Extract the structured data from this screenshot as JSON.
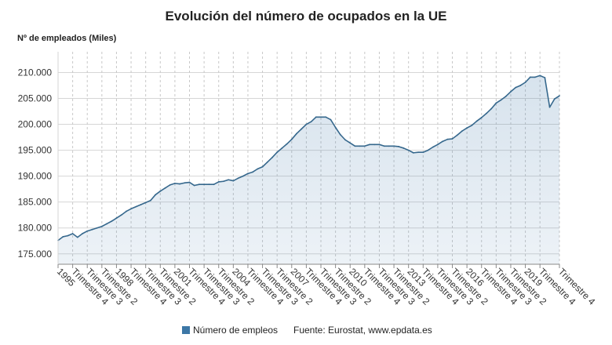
{
  "chart_data": {
    "type": "area",
    "title": "Evolución del número de ocupados en la UE",
    "ylabel": "Nº de empleados (Miles)",
    "xlabel": "",
    "ylim": [
      173000,
      214000
    ],
    "grid": true,
    "legend_position": "bottom",
    "yticks": [
      {
        "value": 175000,
        "label": "175.000"
      },
      {
        "value": 180000,
        "label": "180.000"
      },
      {
        "value": 185000,
        "label": "185.000"
      },
      {
        "value": 190000,
        "label": "190.000"
      },
      {
        "value": 195000,
        "label": "195.000"
      },
      {
        "value": 200000,
        "label": "200.000"
      },
      {
        "value": 205000,
        "label": "205.000"
      },
      {
        "value": 210000,
        "label": "210.000"
      }
    ],
    "xticks": [
      {
        "period": [
          1995,
          1
        ],
        "label": "1995"
      },
      {
        "period": [
          1995,
          4
        ],
        "label": "Trimestre 4"
      },
      {
        "period": [
          1996,
          3
        ],
        "label": "Trimestre 3"
      },
      {
        "period": [
          1997,
          2
        ],
        "label": "Trimestre 2"
      },
      {
        "period": [
          1998,
          1
        ],
        "label": "1998"
      },
      {
        "period": [
          1998,
          4
        ],
        "label": "Trimestre 4"
      },
      {
        "period": [
          1999,
          3
        ],
        "label": "Trimestre 3"
      },
      {
        "period": [
          2000,
          2
        ],
        "label": "Trimestre 2"
      },
      {
        "period": [
          2001,
          1
        ],
        "label": "2001"
      },
      {
        "period": [
          2001,
          4
        ],
        "label": "Trimestre 4"
      },
      {
        "period": [
          2002,
          3
        ],
        "label": "Trimestre 3"
      },
      {
        "period": [
          2003,
          2
        ],
        "label": "Trimestre 2"
      },
      {
        "period": [
          2004,
          1
        ],
        "label": "2004"
      },
      {
        "period": [
          2004,
          4
        ],
        "label": "Trimestre 4"
      },
      {
        "period": [
          2005,
          3
        ],
        "label": "Trimestre 3"
      },
      {
        "period": [
          2006,
          2
        ],
        "label": "Trimestre 2"
      },
      {
        "period": [
          2007,
          1
        ],
        "label": "2007"
      },
      {
        "period": [
          2007,
          4
        ],
        "label": "Trimestre 4"
      },
      {
        "period": [
          2008,
          3
        ],
        "label": "Trimestre 3"
      },
      {
        "period": [
          2009,
          2
        ],
        "label": "Trimestre 2"
      },
      {
        "period": [
          2010,
          1
        ],
        "label": "2010"
      },
      {
        "period": [
          2010,
          4
        ],
        "label": "Trimestre 4"
      },
      {
        "period": [
          2011,
          3
        ],
        "label": "Trimestre 3"
      },
      {
        "period": [
          2012,
          2
        ],
        "label": "Trimestre 2"
      },
      {
        "period": [
          2013,
          1
        ],
        "label": "2013"
      },
      {
        "period": [
          2013,
          4
        ],
        "label": "Trimestre 4"
      },
      {
        "period": [
          2014,
          3
        ],
        "label": "Trimestre 3"
      },
      {
        "period": [
          2015,
          2
        ],
        "label": "Trimestre 2"
      },
      {
        "period": [
          2016,
          1
        ],
        "label": "2016"
      },
      {
        "period": [
          2016,
          4
        ],
        "label": "Trimestre 4"
      },
      {
        "period": [
          2017,
          3
        ],
        "label": "Trimestre 3"
      },
      {
        "period": [
          2018,
          2
        ],
        "label": "Trimestre 2"
      },
      {
        "period": [
          2019,
          1
        ],
        "label": "2019"
      },
      {
        "period": [
          2019,
          4
        ],
        "label": "Trimestre 4"
      },
      {
        "period": [
          2020,
          4
        ],
        "label": "Trimestre 4"
      }
    ],
    "x": [
      [
        1995,
        1
      ],
      [
        1995,
        2
      ],
      [
        1995,
        3
      ],
      [
        1995,
        4
      ],
      [
        1996,
        1
      ],
      [
        1996,
        2
      ],
      [
        1996,
        3
      ],
      [
        1996,
        4
      ],
      [
        1997,
        1
      ],
      [
        1997,
        2
      ],
      [
        1997,
        3
      ],
      [
        1997,
        4
      ],
      [
        1998,
        1
      ],
      [
        1998,
        2
      ],
      [
        1998,
        3
      ],
      [
        1998,
        4
      ],
      [
        1999,
        1
      ],
      [
        1999,
        2
      ],
      [
        1999,
        3
      ],
      [
        1999,
        4
      ],
      [
        2000,
        1
      ],
      [
        2000,
        2
      ],
      [
        2000,
        3
      ],
      [
        2000,
        4
      ],
      [
        2001,
        1
      ],
      [
        2001,
        2
      ],
      [
        2001,
        3
      ],
      [
        2001,
        4
      ],
      [
        2002,
        1
      ],
      [
        2002,
        2
      ],
      [
        2002,
        3
      ],
      [
        2002,
        4
      ],
      [
        2003,
        1
      ],
      [
        2003,
        2
      ],
      [
        2003,
        3
      ],
      [
        2003,
        4
      ],
      [
        2004,
        1
      ],
      [
        2004,
        2
      ],
      [
        2004,
        3
      ],
      [
        2004,
        4
      ],
      [
        2005,
        1
      ],
      [
        2005,
        2
      ],
      [
        2005,
        3
      ],
      [
        2005,
        4
      ],
      [
        2006,
        1
      ],
      [
        2006,
        2
      ],
      [
        2006,
        3
      ],
      [
        2006,
        4
      ],
      [
        2007,
        1
      ],
      [
        2007,
        2
      ],
      [
        2007,
        3
      ],
      [
        2007,
        4
      ],
      [
        2008,
        1
      ],
      [
        2008,
        2
      ],
      [
        2008,
        3
      ],
      [
        2008,
        4
      ],
      [
        2009,
        1
      ],
      [
        2009,
        2
      ],
      [
        2009,
        3
      ],
      [
        2009,
        4
      ],
      [
        2010,
        1
      ],
      [
        2010,
        2
      ],
      [
        2010,
        3
      ],
      [
        2010,
        4
      ],
      [
        2011,
        1
      ],
      [
        2011,
        2
      ],
      [
        2011,
        3
      ],
      [
        2011,
        4
      ],
      [
        2012,
        1
      ],
      [
        2012,
        2
      ],
      [
        2012,
        3
      ],
      [
        2012,
        4
      ],
      [
        2013,
        1
      ],
      [
        2013,
        2
      ],
      [
        2013,
        3
      ],
      [
        2013,
        4
      ],
      [
        2014,
        1
      ],
      [
        2014,
        2
      ],
      [
        2014,
        3
      ],
      [
        2014,
        4
      ],
      [
        2015,
        1
      ],
      [
        2015,
        2
      ],
      [
        2015,
        3
      ],
      [
        2015,
        4
      ],
      [
        2016,
        1
      ],
      [
        2016,
        2
      ],
      [
        2016,
        3
      ],
      [
        2016,
        4
      ],
      [
        2017,
        1
      ],
      [
        2017,
        2
      ],
      [
        2017,
        3
      ],
      [
        2017,
        4
      ],
      [
        2018,
        1
      ],
      [
        2018,
        2
      ],
      [
        2018,
        3
      ],
      [
        2018,
        4
      ],
      [
        2019,
        1
      ],
      [
        2019,
        2
      ],
      [
        2019,
        3
      ],
      [
        2019,
        4
      ],
      [
        2020,
        1
      ],
      [
        2020,
        2
      ],
      [
        2020,
        3
      ],
      [
        2020,
        4
      ]
    ],
    "series": [
      {
        "name": "Número de empleos",
        "values": [
          177600,
          178300,
          178500,
          178900,
          178200,
          178900,
          179400,
          179700,
          180000,
          180300,
          180800,
          181300,
          181900,
          182500,
          183200,
          183700,
          184100,
          184500,
          184900,
          185300,
          186400,
          187100,
          187700,
          188300,
          188600,
          188500,
          188700,
          188800,
          188200,
          188400,
          188400,
          188400,
          188400,
          188900,
          189000,
          189300,
          189100,
          189600,
          190000,
          190500,
          190800,
          191400,
          191800,
          192700,
          193600,
          194600,
          195400,
          196200,
          197100,
          198200,
          199100,
          200000,
          200500,
          201400,
          201400,
          201400,
          200900,
          199400,
          198000,
          197000,
          196400,
          195800,
          195800,
          195800,
          196100,
          196100,
          196100,
          195800,
          195800,
          195800,
          195700,
          195400,
          195000,
          194500,
          194600,
          194600,
          195000,
          195600,
          196100,
          196700,
          197100,
          197200,
          197900,
          198700,
          199300,
          199800,
          200600,
          201300,
          202100,
          203000,
          204100,
          204700,
          205400,
          206300,
          207100,
          207500,
          208100,
          209100,
          209100,
          209400,
          209000,
          203300,
          204900,
          205500
        ]
      }
    ]
  },
  "source": "Fuente: Eurostat, www.epdata.es",
  "colors": {
    "line": "#36688d",
    "fill": "#4a7fae",
    "legend_marker": "#3c77a6",
    "grid": "#d6d6d6"
  }
}
